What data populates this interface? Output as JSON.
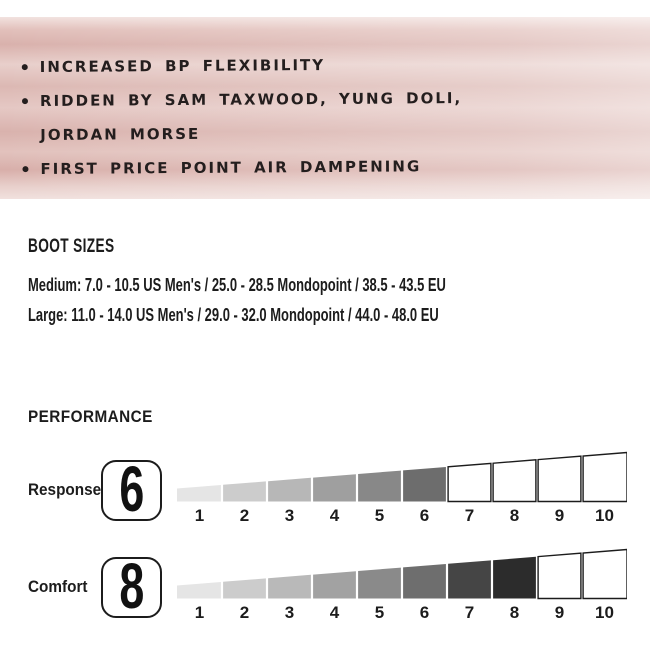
{
  "features": {
    "lines": [
      {
        "bullet": true,
        "text": "INCREASED BP FLEXIBILITY"
      },
      {
        "bullet": true,
        "text": "RIDDEN BY SAM TAXWOOD, YUNG DOLI,"
      },
      {
        "bullet": false,
        "text": "JORDAN MORSE"
      },
      {
        "bullet": true,
        "text": "FIRST PRICE POINT AIR DAMPENING"
      }
    ]
  },
  "boot_sizes": {
    "heading": "BOOT SIZES",
    "rows": [
      "Medium: 7.0 - 10.5 US Men's / 25.0 - 28.5 Mondopoint / 38.5 - 43.5 EU",
      "Large: 11.0 - 14.0 US Men's / 29.0 - 32.0 Mondopoint / 44.0 - 48.0 EU"
    ]
  },
  "performance": {
    "heading": "PERFORMANCE"
  },
  "chart_data": {
    "type": "bar",
    "variant": "wedge-rating-scale",
    "title": "PERFORMANCE",
    "categories": [
      "1",
      "2",
      "3",
      "4",
      "5",
      "6",
      "7",
      "8",
      "9",
      "10"
    ],
    "scale": {
      "min": 1,
      "max": 10
    },
    "series": [
      {
        "name": "Response",
        "value": 6,
        "colors": [
          "#e5e5e5",
          "#cccccc",
          "#b7b7b7",
          "#9f9f9f",
          "#888888",
          "#6d6d6d"
        ]
      },
      {
        "name": "Comfort",
        "value": 8,
        "colors": [
          "#e5e5e5",
          "#cccccc",
          "#b9b9b9",
          "#a2a2a2",
          "#8a8a8a",
          "#6e6e6e",
          "#454545",
          "#2c2c2c"
        ]
      }
    ],
    "unfilled_style": {
      "fill": "#ffffff",
      "stroke": "#1c1c1c"
    },
    "legend": "none",
    "notes": "Each series rendered as a left-to-right growing wedge of 10 segments; segments up to the value are filled with a light-to-dark gray ramp, remaining segments are white with black outlines."
  },
  "colors": {
    "banner_pink_base": "#deb9b4",
    "banner_pink_light": "#f1e1de",
    "text": "#1c1c1c"
  }
}
